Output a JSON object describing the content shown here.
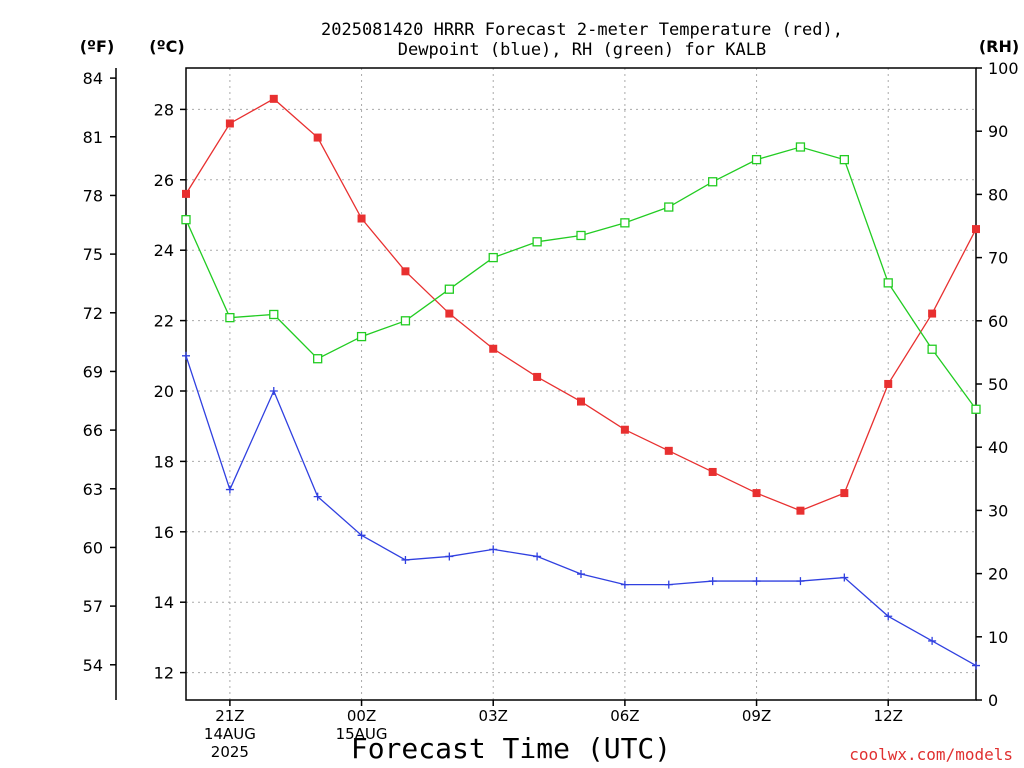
{
  "chart_data": {
    "type": "line",
    "title_line1": "2025081420 HRRR Forecast 2-meter Temperature (red),",
    "title_line2": "Dewpoint (blue), RH (green) for KALB",
    "xlabel": "Forecast Time (UTC)",
    "left_axis_unit_f": "(ºF)",
    "left_axis_unit_c": "(ºC)",
    "right_axis_unit": "(RH)",
    "credit": "coolwx.com/models",
    "x_hours": [
      20,
      21,
      22,
      23,
      24,
      25,
      26,
      27,
      28,
      29,
      30,
      31,
      32,
      33,
      34,
      35,
      36,
      37,
      38
    ],
    "x_ticks": [
      {
        "hour": 21,
        "lines": [
          "21Z",
          "14AUG",
          "2025"
        ]
      },
      {
        "hour": 24,
        "lines": [
          "00Z",
          "15AUG"
        ]
      },
      {
        "hour": 27,
        "lines": [
          "03Z"
        ]
      },
      {
        "hour": 30,
        "lines": [
          "06Z"
        ]
      },
      {
        "hour": 33,
        "lines": [
          "09Z"
        ]
      },
      {
        "hour": 36,
        "lines": [
          "12Z"
        ]
      }
    ],
    "celsius_ticks": [
      12,
      14,
      16,
      18,
      20,
      22,
      24,
      26,
      28
    ],
    "fahrenheit_ticks": [
      54,
      57,
      60,
      63,
      66,
      69,
      72,
      75,
      78,
      81,
      84
    ],
    "rh_ticks": [
      0,
      10,
      20,
      30,
      40,
      50,
      60,
      70,
      80,
      90,
      100
    ],
    "ylim_c": [
      11.2,
      29.2
    ],
    "ylim_rh": [
      0,
      100
    ],
    "grid": true,
    "series": [
      {
        "name": "Temperature",
        "axis": "c",
        "color": "#e83030",
        "marker": "filled-square",
        "values": [
          25.6,
          27.6,
          28.3,
          27.2,
          24.9,
          23.4,
          22.2,
          21.2,
          20.4,
          19.7,
          18.9,
          18.3,
          17.7,
          17.1,
          16.6,
          17.1,
          20.2,
          22.2,
          24.6
        ]
      },
      {
        "name": "Dewpoint",
        "axis": "c",
        "color": "#3040e0",
        "marker": "plus",
        "values": [
          21.0,
          17.2,
          20.0,
          17.0,
          15.9,
          15.2,
          15.3,
          15.5,
          15.3,
          14.8,
          14.5,
          14.5,
          14.6,
          14.6,
          14.6,
          14.7,
          13.6,
          12.9,
          12.2
        ]
      },
      {
        "name": "RH",
        "axis": "rh",
        "color": "#22cc22",
        "marker": "open-square",
        "values": [
          76,
          60.5,
          61,
          54,
          57.5,
          60,
          65,
          70,
          72.5,
          73.5,
          75.5,
          78,
          82,
          85.5,
          87.5,
          85.5,
          66,
          55.5,
          46
        ]
      }
    ]
  }
}
